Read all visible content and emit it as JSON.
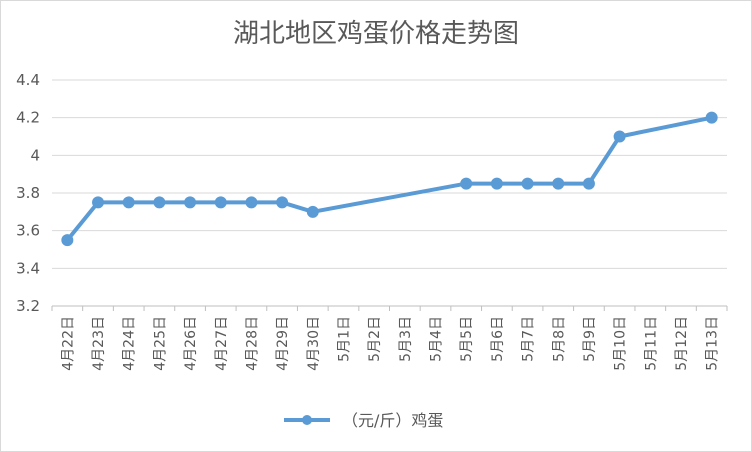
{
  "chart_data": {
    "type": "line",
    "title": "湖北地区鸡蛋价格走势图",
    "xlabel": "",
    "ylabel": "",
    "ylim": [
      3.2,
      4.4
    ],
    "yticks": [
      "3.2",
      "3.4",
      "3.6",
      "3.8",
      "4",
      "4.2",
      "4.4"
    ],
    "grid": true,
    "legend_position": "bottom",
    "categories": [
      "4月22日",
      "4月23日",
      "4月24日",
      "4月25日",
      "4月26日",
      "4月27日",
      "4月28日",
      "4月29日",
      "4月30日",
      "5月1日",
      "5月2日",
      "5月3日",
      "5月4日",
      "5月5日",
      "5月6日",
      "5月7日",
      "5月8日",
      "5月9日",
      "5月10日",
      "5月11日",
      "5月12日",
      "5月13日"
    ],
    "series": [
      {
        "name": "（元/斤）鸡蛋",
        "color": "#5b9bd5",
        "values": [
          3.55,
          3.75,
          3.75,
          3.75,
          3.75,
          3.75,
          3.75,
          3.75,
          3.7,
          null,
          null,
          null,
          null,
          3.85,
          3.85,
          3.85,
          3.85,
          3.85,
          4.1,
          null,
          null,
          4.2
        ]
      }
    ]
  }
}
